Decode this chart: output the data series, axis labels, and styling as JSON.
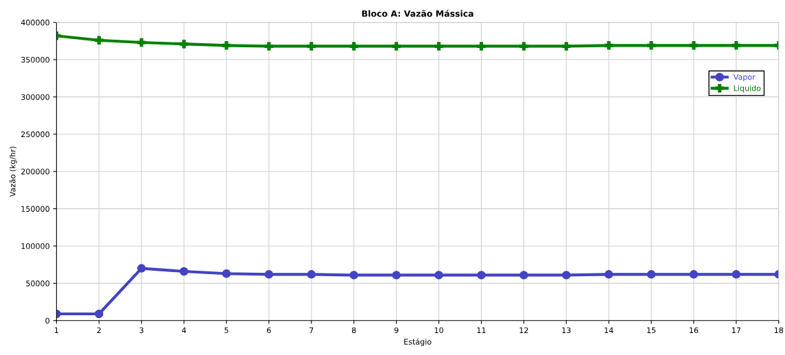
{
  "chart_data": {
    "type": "line",
    "title": "Bloco A: Vazão Mássica",
    "xlabel": "Estágio",
    "ylabel": "Vazão (kg/hr)",
    "x": [
      1,
      2,
      3,
      4,
      5,
      6,
      7,
      8,
      9,
      10,
      11,
      12,
      13,
      14,
      15,
      16,
      17,
      18
    ],
    "series": [
      {
        "name": "Vapor",
        "color": "#4343c3",
        "marker": "circle",
        "values": [
          9000,
          9000,
          70000,
          66000,
          63000,
          62000,
          62000,
          61000,
          61000,
          61000,
          61000,
          61000,
          61000,
          62000,
          62000,
          62000,
          62000,
          62000
        ]
      },
      {
        "name": "Liquido",
        "color": "#008000",
        "marker": "cross",
        "values": [
          382000,
          376000,
          373000,
          371000,
          369000,
          368000,
          368000,
          368000,
          368000,
          368000,
          368000,
          368000,
          368000,
          369000,
          369000,
          369000,
          369000,
          369000
        ]
      }
    ],
    "xlim": [
      1,
      18
    ],
    "xticks": [
      1,
      2,
      3,
      4,
      5,
      6,
      7,
      8,
      9,
      10,
      11,
      12,
      13,
      14,
      15,
      16,
      17,
      18
    ],
    "ylim": [
      0,
      400000
    ],
    "yticks": [
      0,
      50000,
      100000,
      150000,
      200000,
      250000,
      300000,
      350000,
      400000
    ],
    "grid": true,
    "legend": "top right"
  }
}
